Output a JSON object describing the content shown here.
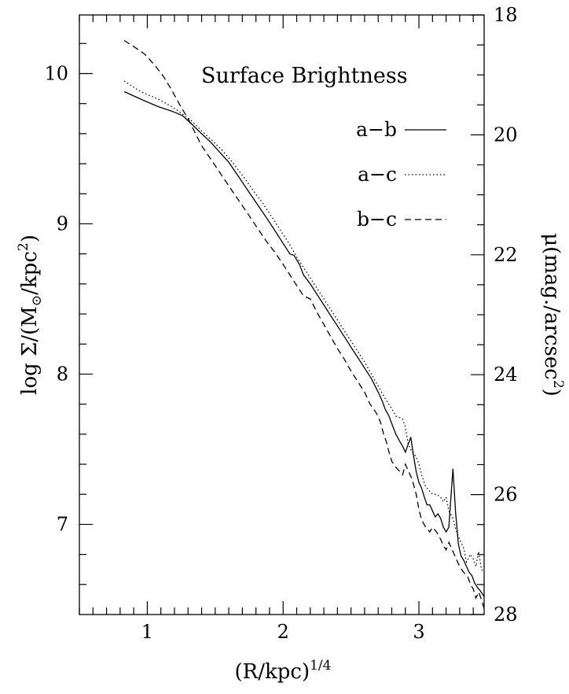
{
  "chart_data": {
    "type": "line",
    "title": "Surface Brightness",
    "xlabel": {
      "main": "(R/kpc)",
      "sup": "1/4"
    },
    "ylabel_left": {
      "pre": "log Σ/(M",
      "sub": "⊙",
      "mid": "/kpc",
      "sup": "2",
      "post": ")"
    },
    "ylabel_right": {
      "pre": "μ(mag./arcsec",
      "sup": "2",
      "post": ")"
    },
    "xlim": [
      0.5,
      3.48
    ],
    "ylim_left": [
      6.4,
      10.39
    ],
    "ylim_right": [
      18,
      28
    ],
    "x_ticks": [
      "1",
      "2",
      "3"
    ],
    "y_left_ticks": [
      "7",
      "8",
      "9",
      "10"
    ],
    "y_right_ticks": [
      "18",
      "20",
      "22",
      "24",
      "26",
      "28"
    ],
    "grid": false,
    "legend_position": "top-right",
    "series": [
      {
        "name": "a−b",
        "dash": "solid",
        "x": [
          0.83,
          0.95,
          1.08,
          1.18,
          1.26,
          1.32,
          1.4,
          1.47,
          1.54,
          1.6,
          1.66,
          1.72,
          1.78,
          1.84,
          1.9,
          1.95,
          2.0,
          2.05,
          2.08,
          2.12,
          2.15,
          2.2,
          2.25,
          2.3,
          2.35,
          2.4,
          2.45,
          2.5,
          2.55,
          2.6,
          2.65,
          2.7,
          2.73,
          2.75,
          2.78,
          2.8,
          2.83,
          2.86,
          2.88,
          2.9,
          2.92,
          2.94,
          2.96,
          2.98,
          3.0,
          3.02,
          3.04,
          3.06,
          3.08,
          3.1,
          3.12,
          3.14,
          3.16,
          3.18,
          3.2,
          3.22,
          3.25,
          3.27,
          3.29,
          3.31,
          3.33,
          3.35,
          3.37,
          3.39,
          3.41,
          3.43,
          3.45,
          3.48
        ],
        "y": [
          9.88,
          9.83,
          9.78,
          9.75,
          9.72,
          9.67,
          9.6,
          9.54,
          9.47,
          9.41,
          9.33,
          9.25,
          9.17,
          9.09,
          9.01,
          8.94,
          8.87,
          8.8,
          8.79,
          8.73,
          8.66,
          8.6,
          8.53,
          8.46,
          8.39,
          8.32,
          8.25,
          8.18,
          8.11,
          8.04,
          7.97,
          7.88,
          7.82,
          7.77,
          7.72,
          7.67,
          7.6,
          7.55,
          7.52,
          7.48,
          7.53,
          7.58,
          7.46,
          7.35,
          7.28,
          7.24,
          7.18,
          7.13,
          7.13,
          7.09,
          7.05,
          7.07,
          7.04,
          6.98,
          6.95,
          6.98,
          7.37,
          7.08,
          6.87,
          6.79,
          6.76,
          6.72,
          6.68,
          6.66,
          6.61,
          6.58,
          6.56,
          6.52
        ]
      },
      {
        "name": "a−c",
        "dash": "dotted",
        "x": [
          0.83,
          0.95,
          1.08,
          1.18,
          1.26,
          1.32,
          1.4,
          1.47,
          1.54,
          1.6,
          1.66,
          1.72,
          1.78,
          1.84,
          1.9,
          1.95,
          2.0,
          2.05,
          2.1,
          2.15,
          2.2,
          2.25,
          2.3,
          2.35,
          2.4,
          2.45,
          2.5,
          2.55,
          2.6,
          2.65,
          2.7,
          2.75,
          2.8,
          2.83,
          2.86,
          2.88,
          2.9,
          2.92,
          2.95,
          2.98,
          3.0,
          3.02,
          3.05,
          3.08,
          3.1,
          3.13,
          3.16,
          3.18,
          3.2,
          3.22,
          3.25,
          3.27,
          3.3,
          3.33,
          3.35,
          3.38,
          3.4,
          3.42,
          3.44,
          3.46,
          3.48
        ],
        "y": [
          9.95,
          9.88,
          9.83,
          9.78,
          9.73,
          9.69,
          9.62,
          9.56,
          9.5,
          9.44,
          9.37,
          9.3,
          9.22,
          9.15,
          9.07,
          9.0,
          8.93,
          8.86,
          8.78,
          8.71,
          8.64,
          8.57,
          8.5,
          8.43,
          8.36,
          8.29,
          8.22,
          8.15,
          8.08,
          8.0,
          7.92,
          7.84,
          7.77,
          7.72,
          7.71,
          7.7,
          7.65,
          7.54,
          7.48,
          7.45,
          7.4,
          7.33,
          7.25,
          7.22,
          7.2,
          7.2,
          7.18,
          7.15,
          7.18,
          7.09,
          7.04,
          6.97,
          6.9,
          6.84,
          6.75,
          6.8,
          6.77,
          6.72,
          6.82,
          6.7,
          6.68
        ]
      },
      {
        "name": "b−c",
        "dash": "dashed",
        "x": [
          0.83,
          0.9,
          0.98,
          1.05,
          1.12,
          1.18,
          1.24,
          1.3,
          1.35,
          1.4,
          1.46,
          1.52,
          1.58,
          1.64,
          1.7,
          1.76,
          1.82,
          1.88,
          1.94,
          2.0,
          2.05,
          2.1,
          2.15,
          2.2,
          2.25,
          2.3,
          2.35,
          2.4,
          2.45,
          2.5,
          2.55,
          2.6,
          2.64,
          2.68,
          2.7,
          2.72,
          2.74,
          2.76,
          2.78,
          2.8,
          2.83,
          2.86,
          2.88,
          2.9,
          2.92,
          2.95,
          2.98,
          3.0,
          3.02,
          3.05,
          3.08,
          3.1,
          3.13,
          3.16,
          3.18,
          3.2,
          3.22,
          3.25,
          3.28,
          3.3,
          3.33,
          3.36,
          3.38,
          3.4,
          3.42,
          3.44,
          3.46,
          3.48
        ],
        "y": [
          10.22,
          10.18,
          10.13,
          10.06,
          9.98,
          9.89,
          9.79,
          9.7,
          9.61,
          9.52,
          9.44,
          9.36,
          9.28,
          9.2,
          9.12,
          9.04,
          8.96,
          8.88,
          8.81,
          8.73,
          8.66,
          8.59,
          8.52,
          8.5,
          8.41,
          8.33,
          8.25,
          8.17,
          8.1,
          8.02,
          7.95,
          7.88,
          7.8,
          7.75,
          7.72,
          7.67,
          7.6,
          7.55,
          7.48,
          7.42,
          7.38,
          7.35,
          7.33,
          7.4,
          7.36,
          7.3,
          7.2,
          7.1,
          7.03,
          6.98,
          6.95,
          6.98,
          6.95,
          6.9,
          6.86,
          6.83,
          6.88,
          6.82,
          6.76,
          6.72,
          6.68,
          6.65,
          6.6,
          6.57,
          6.51,
          6.55,
          6.5,
          6.44
        ]
      }
    ]
  }
}
